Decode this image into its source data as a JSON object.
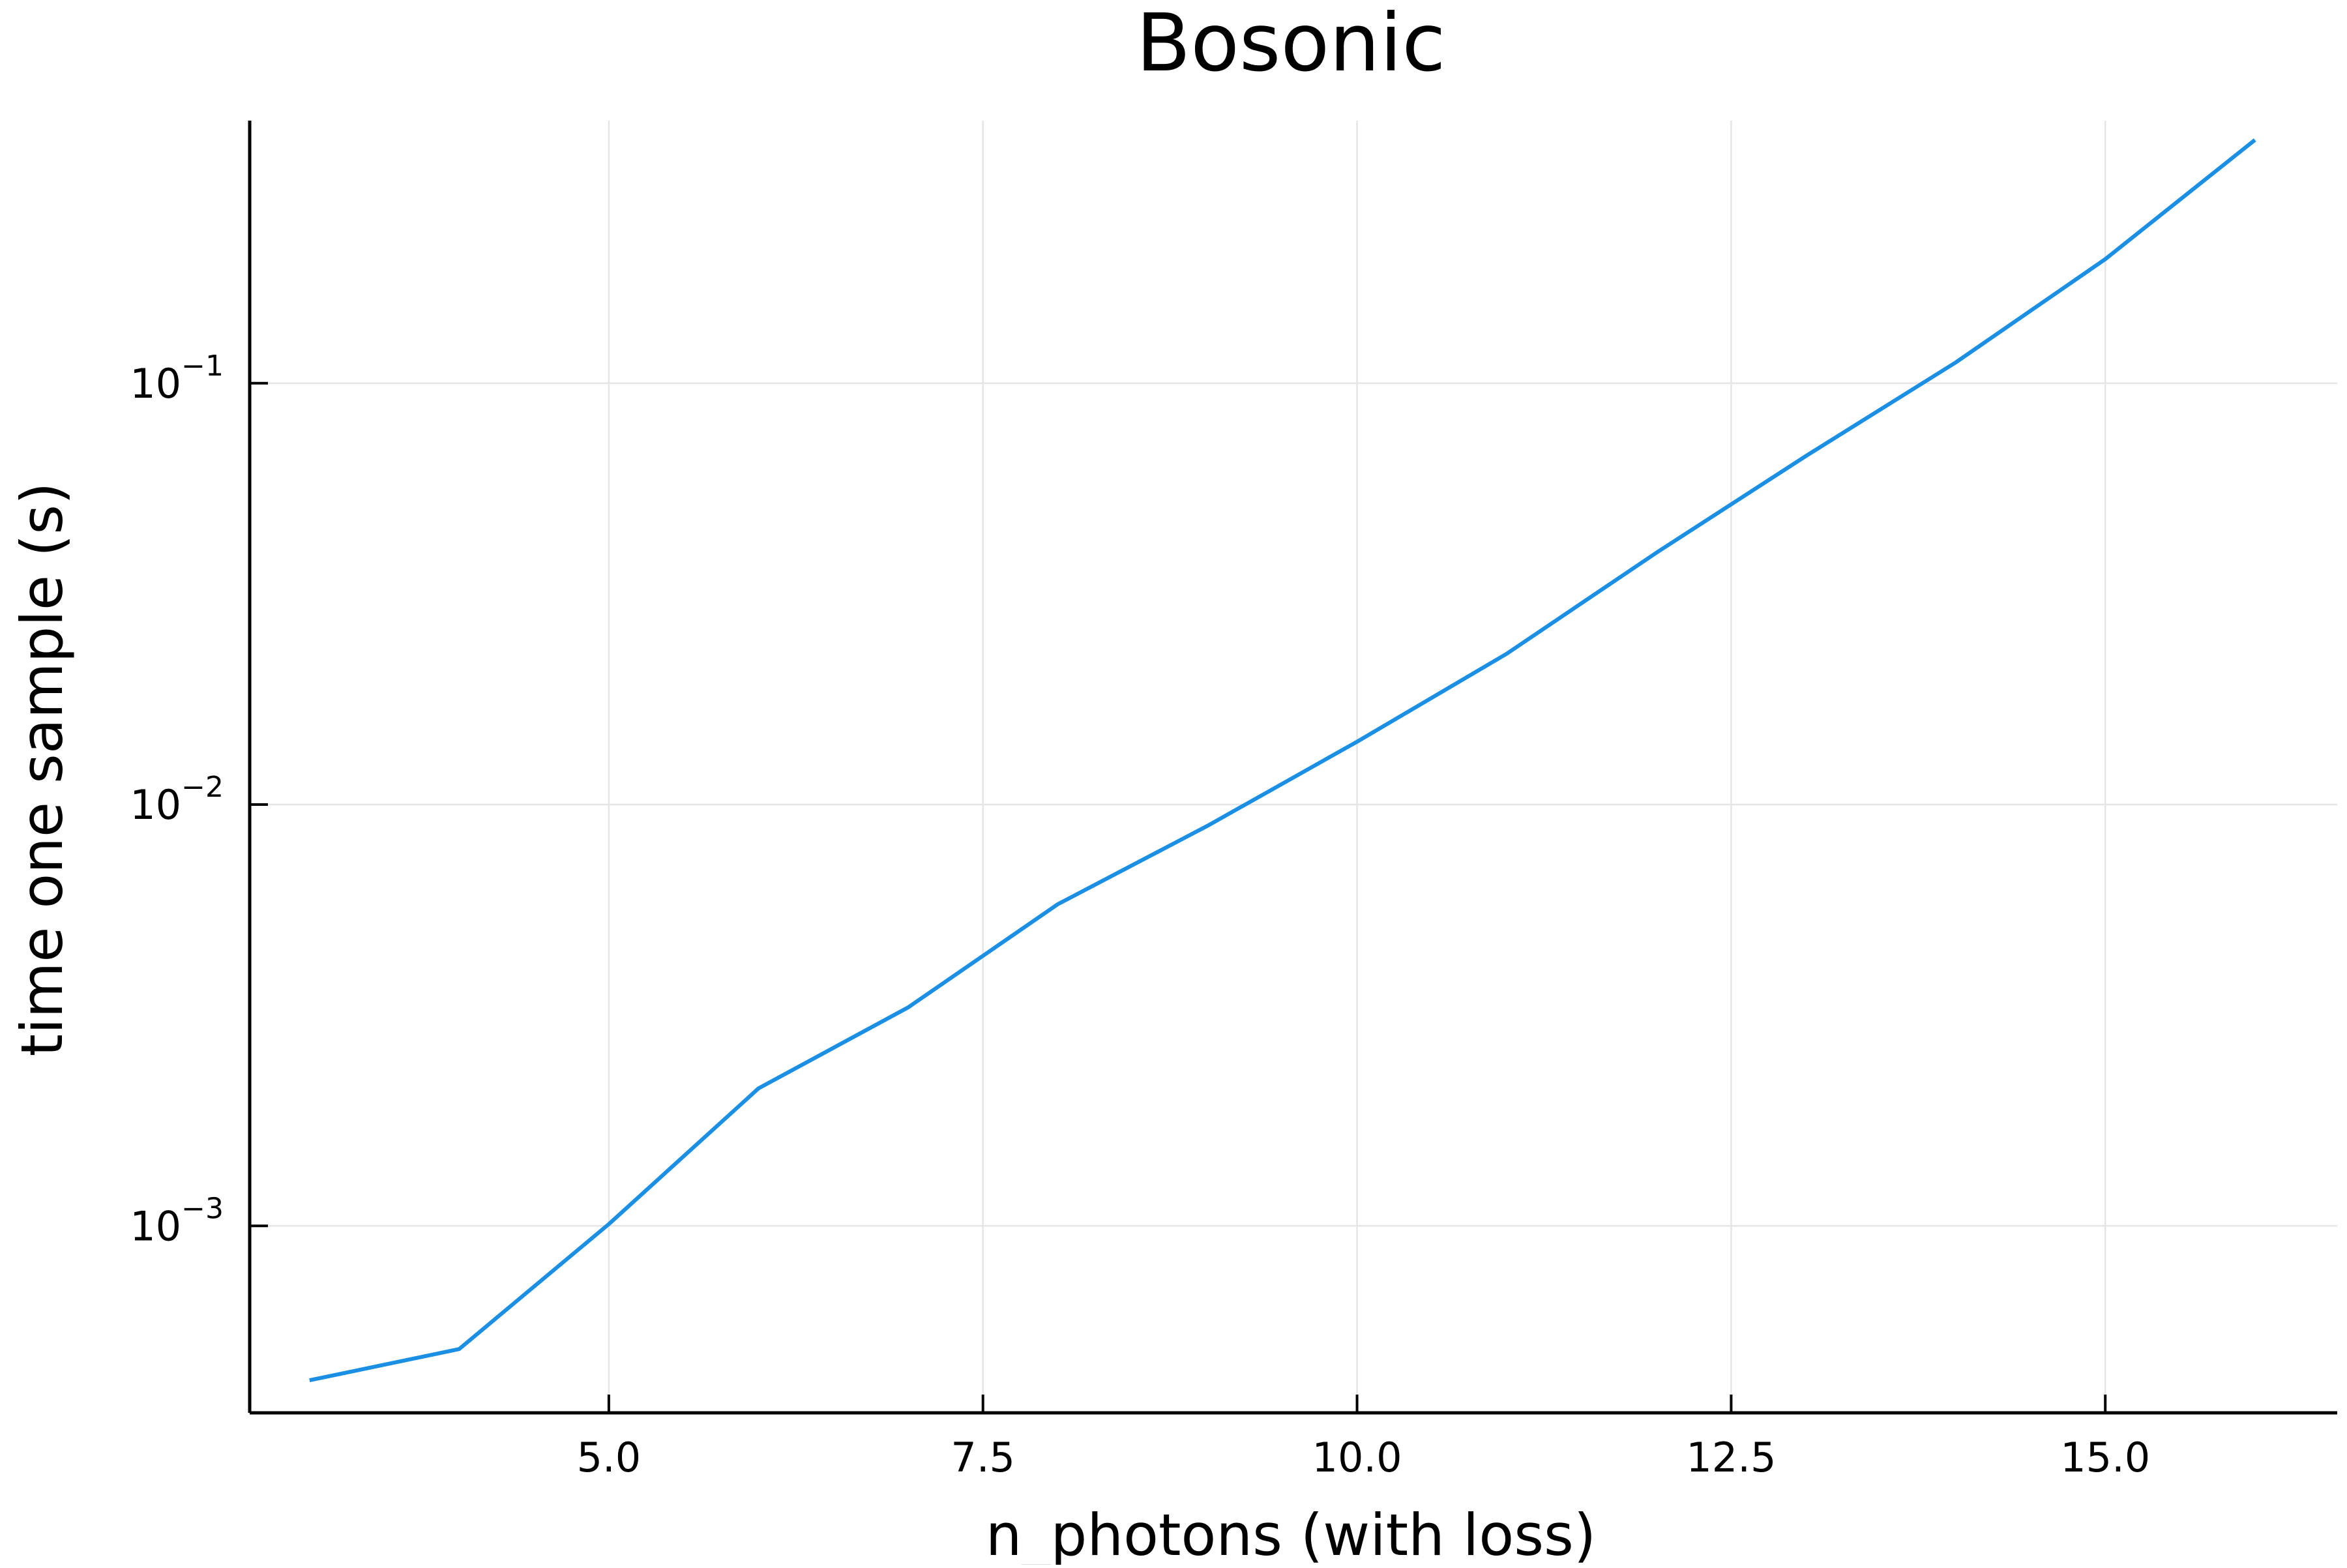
{
  "chart_data": {
    "type": "line",
    "title": "Bosonic",
    "xlabel": "n_photons (with loss)",
    "ylabel": "time one sample (s)",
    "yscale": "log",
    "xlim": [
      2.6,
      16.55
    ],
    "ylim": [
      0.00036,
      0.42
    ],
    "grid": true,
    "legend": "none",
    "colors": {
      "line": "#1a8fe3",
      "grid": "#e5e5e5",
      "axis": "#000000"
    },
    "x_ticks": [
      {
        "value": 5.0,
        "label": "5.0"
      },
      {
        "value": 7.5,
        "label": "7.5"
      },
      {
        "value": 10.0,
        "label": "10.0"
      },
      {
        "value": 12.5,
        "label": "12.5"
      },
      {
        "value": 15.0,
        "label": "15.0"
      }
    ],
    "y_ticks": [
      {
        "value": 0.001,
        "base": "10",
        "exp": "−3"
      },
      {
        "value": 0.01,
        "base": "10",
        "exp": "−2"
      },
      {
        "value": 0.1,
        "base": "10",
        "exp": "−1"
      }
    ],
    "series": [
      {
        "x": [
          3,
          4,
          5,
          6,
          7,
          8,
          9,
          10,
          11,
          12,
          13,
          14,
          15,
          16
        ],
        "y": [
          0.00043,
          0.00051,
          0.00101,
          0.00212,
          0.0033,
          0.0058,
          0.0089,
          0.0141,
          0.0228,
          0.0396,
          0.0672,
          0.112,
          0.197,
          0.378
        ]
      }
    ]
  }
}
